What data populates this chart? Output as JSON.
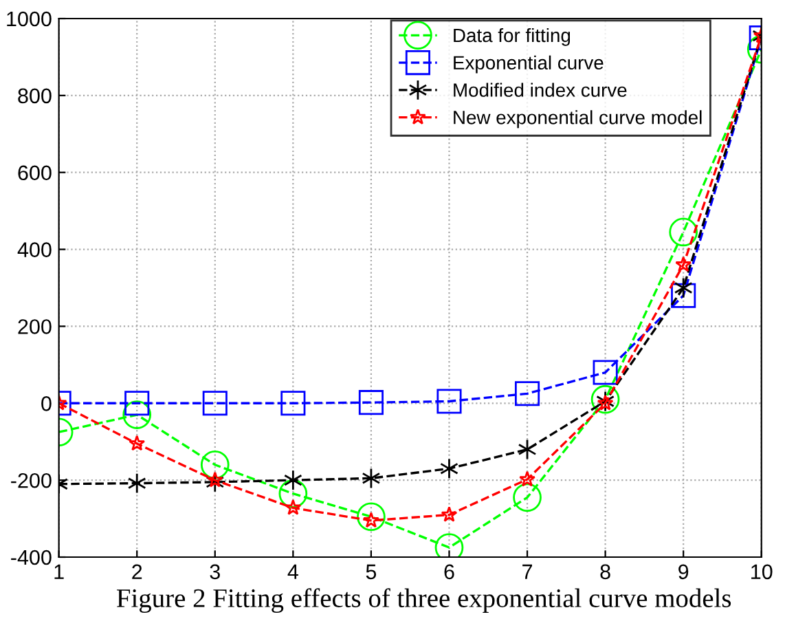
{
  "chart_data": {
    "type": "line",
    "x": [
      1,
      2,
      3,
      4,
      5,
      6,
      7,
      8,
      9,
      10
    ],
    "series": [
      {
        "name": "Data for fitting",
        "color": "#00ff00",
        "marker": "circle",
        "values": [
          -75,
          -30,
          -160,
          -235,
          -295,
          -375,
          -245,
          10,
          445,
          920
        ]
      },
      {
        "name": "Exponential curve",
        "color": "#0000ff",
        "marker": "square",
        "values": [
          0,
          0,
          0,
          0,
          2,
          5,
          25,
          80,
          280,
          950
        ]
      },
      {
        "name": "Modified index curve",
        "color": "#000000",
        "marker": "cross",
        "values": [
          -210,
          -208,
          -205,
          -200,
          -195,
          -170,
          -120,
          5,
          300,
          955
        ]
      },
      {
        "name": "New exponential curve model",
        "color": "#ff0000",
        "marker": "star",
        "values": [
          0,
          -105,
          -200,
          -272,
          -305,
          -290,
          -198,
          0,
          360,
          955
        ]
      }
    ],
    "xlim": [
      1,
      10
    ],
    "xticks": [
      1,
      2,
      3,
      4,
      5,
      6,
      7,
      8,
      9,
      10
    ],
    "ylim": [
      -400,
      1000
    ],
    "yticks": [
      -400,
      -200,
      0,
      200,
      400,
      600,
      800,
      1000
    ],
    "grid": true,
    "legend": "top right",
    "line_style": "dashed",
    "annotations": [
      "Figure 2 Fitting effects of three exponential curve models"
    ]
  }
}
